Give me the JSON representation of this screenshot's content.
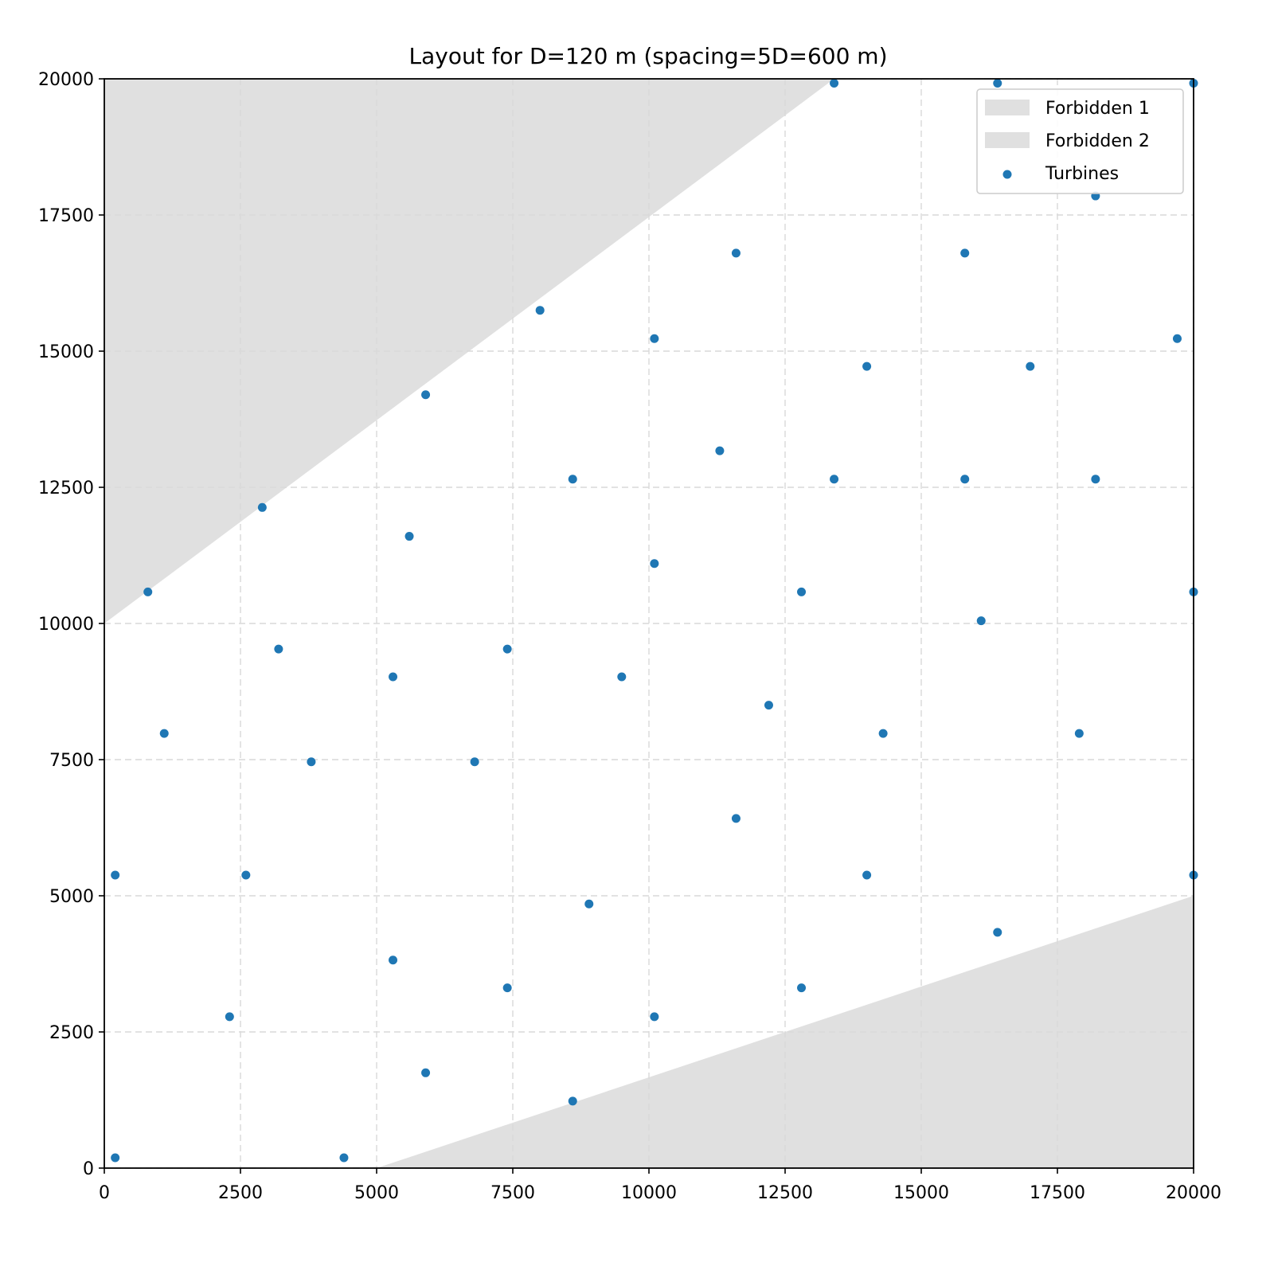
{
  "chart_data": {
    "type": "scatter",
    "title": "Layout for D=120 m (spacing=5D=600 m)",
    "xlabel": "",
    "ylabel": "",
    "xlim": [
      0,
      20000
    ],
    "ylim": [
      0,
      20000
    ],
    "xticks": [
      0,
      2500,
      5000,
      7500,
      10000,
      12500,
      15000,
      17500,
      20000
    ],
    "yticks": [
      0,
      2500,
      5000,
      7500,
      10000,
      12500,
      15000,
      17500,
      20000
    ],
    "xtick_labels": [
      "0",
      "2500",
      "5000",
      "7500",
      "10000",
      "12500",
      "15000",
      "17500",
      "20000"
    ],
    "ytick_labels": [
      "0",
      "2500",
      "5000",
      "7500",
      "10000",
      "12500",
      "15000",
      "17500",
      "20000"
    ],
    "grid": true,
    "legend_position": "top-right",
    "legend": [
      "Forbidden 1",
      "Forbidden 2",
      "Turbines"
    ],
    "forbidden_zones": [
      {
        "name": "Forbidden 1",
        "color": "#e0e0e0",
        "polygon": [
          [
            0,
            10000
          ],
          [
            13400,
            20000
          ],
          [
            0,
            20000
          ]
        ]
      },
      {
        "name": "Forbidden 2",
        "color": "#e0e0e0",
        "polygon": [
          [
            5000,
            0
          ],
          [
            20000,
            5000
          ],
          [
            20000,
            0
          ]
        ]
      }
    ],
    "series": [
      {
        "name": "Turbines",
        "color": "#1f77b4",
        "points": [
          [
            13400,
            19920
          ],
          [
            16400,
            19920
          ],
          [
            20000,
            19920
          ],
          [
            18200,
            17850
          ],
          [
            11600,
            16800
          ],
          [
            15800,
            16800
          ],
          [
            8000,
            15750
          ],
          [
            10100,
            15230
          ],
          [
            19700,
            15230
          ],
          [
            14000,
            14720
          ],
          [
            17000,
            14720
          ],
          [
            5900,
            14200
          ],
          [
            11300,
            13170
          ],
          [
            8600,
            12650
          ],
          [
            13400,
            12650
          ],
          [
            15800,
            12650
          ],
          [
            18200,
            12650
          ],
          [
            2900,
            12130
          ],
          [
            5600,
            11600
          ],
          [
            10100,
            11100
          ],
          [
            800,
            10580
          ],
          [
            12800,
            10580
          ],
          [
            20000,
            10580
          ],
          [
            16100,
            10050
          ],
          [
            3200,
            9530
          ],
          [
            7400,
            9530
          ],
          [
            5300,
            9020
          ],
          [
            9500,
            9020
          ],
          [
            12200,
            8500
          ],
          [
            1100,
            7980
          ],
          [
            14300,
            7980
          ],
          [
            17900,
            7980
          ],
          [
            3800,
            7460
          ],
          [
            6800,
            7460
          ],
          [
            11600,
            6420
          ],
          [
            200,
            5380
          ],
          [
            2600,
            5380
          ],
          [
            14000,
            5380
          ],
          [
            20000,
            5380
          ],
          [
            8900,
            4850
          ],
          [
            16400,
            4330
          ],
          [
            5300,
            3820
          ],
          [
            7400,
            3310
          ],
          [
            12800,
            3310
          ],
          [
            2300,
            2780
          ],
          [
            10100,
            2780
          ],
          [
            5900,
            1750
          ],
          [
            8600,
            1230
          ],
          [
            200,
            190
          ],
          [
            4400,
            190
          ]
        ]
      }
    ]
  }
}
